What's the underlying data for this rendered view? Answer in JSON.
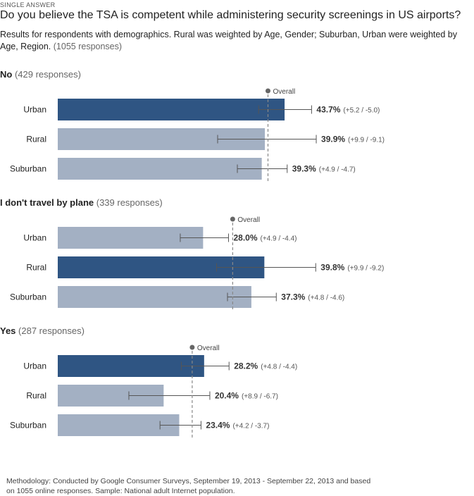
{
  "header": {
    "kicker": "SINGLE ANSWER",
    "title": "Do you believe the TSA is competent while administering security screenings in US airports?",
    "subtitle": "Results for respondents with demographics. Rural was weighted by Age, Gender; Suburban, Urban were weighted by Age, Region.",
    "total_responses": "(1055 responses)"
  },
  "footer": {
    "methodology": "Methodology: Conducted by Google Consumer Surveys, September 19, 2013 - September 22, 2013 and based on 1055 online responses. Sample: National adult Internet population."
  },
  "colors": {
    "highlight": "#2f5583",
    "normal": "#a3b0c3",
    "error_bar": "#555555",
    "overall_line": "#888888"
  },
  "chart_data": {
    "type": "bar",
    "orientation": "horizontal",
    "overall_label": "Overall",
    "xlim": [
      0,
      100
    ],
    "groups": [
      {
        "label": "No",
        "responses": "(429 responses)",
        "overall": 40.5,
        "rows": [
          {
            "name": "Urban",
            "value": 43.7,
            "value_label": "43.7%",
            "ci_label": "(+5.2 / -5.0)",
            "ci_plus": 5.2,
            "ci_minus": 5.0,
            "highlight": true
          },
          {
            "name": "Rural",
            "value": 39.9,
            "value_label": "39.9%",
            "ci_label": "(+9.9 / -9.1)",
            "ci_plus": 9.9,
            "ci_minus": 9.1,
            "highlight": false
          },
          {
            "name": "Suburban",
            "value": 39.3,
            "value_label": "39.3%",
            "ci_label": "(+4.9 / -4.7)",
            "ci_plus": 4.9,
            "ci_minus": 4.7,
            "highlight": false
          }
        ]
      },
      {
        "label": "I don't travel by plane",
        "responses": "(339 responses)",
        "overall": 33.7,
        "rows": [
          {
            "name": "Urban",
            "value": 28.0,
            "value_label": "28.0%",
            "ci_label": "(+4.9 / -4.4)",
            "ci_plus": 4.9,
            "ci_minus": 4.4,
            "highlight": false
          },
          {
            "name": "Rural",
            "value": 39.8,
            "value_label": "39.8%",
            "ci_label": "(+9.9 / -9.2)",
            "ci_plus": 9.9,
            "ci_minus": 9.2,
            "highlight": true
          },
          {
            "name": "Suburban",
            "value": 37.3,
            "value_label": "37.3%",
            "ci_label": "(+4.8 / -4.6)",
            "ci_plus": 4.8,
            "ci_minus": 4.6,
            "highlight": false
          }
        ]
      },
      {
        "label": "Yes",
        "responses": "(287 responses)",
        "overall": 25.9,
        "rows": [
          {
            "name": "Urban",
            "value": 28.2,
            "value_label": "28.2%",
            "ci_label": "(+4.8 / -4.4)",
            "ci_plus": 4.8,
            "ci_minus": 4.4,
            "highlight": true
          },
          {
            "name": "Rural",
            "value": 20.4,
            "value_label": "20.4%",
            "ci_label": "(+8.9 / -6.7)",
            "ci_plus": 8.9,
            "ci_minus": 6.7,
            "highlight": false
          },
          {
            "name": "Suburban",
            "value": 23.4,
            "value_label": "23.4%",
            "ci_label": "(+4.2 / -3.7)",
            "ci_plus": 4.2,
            "ci_minus": 3.7,
            "highlight": false
          }
        ]
      }
    ]
  }
}
